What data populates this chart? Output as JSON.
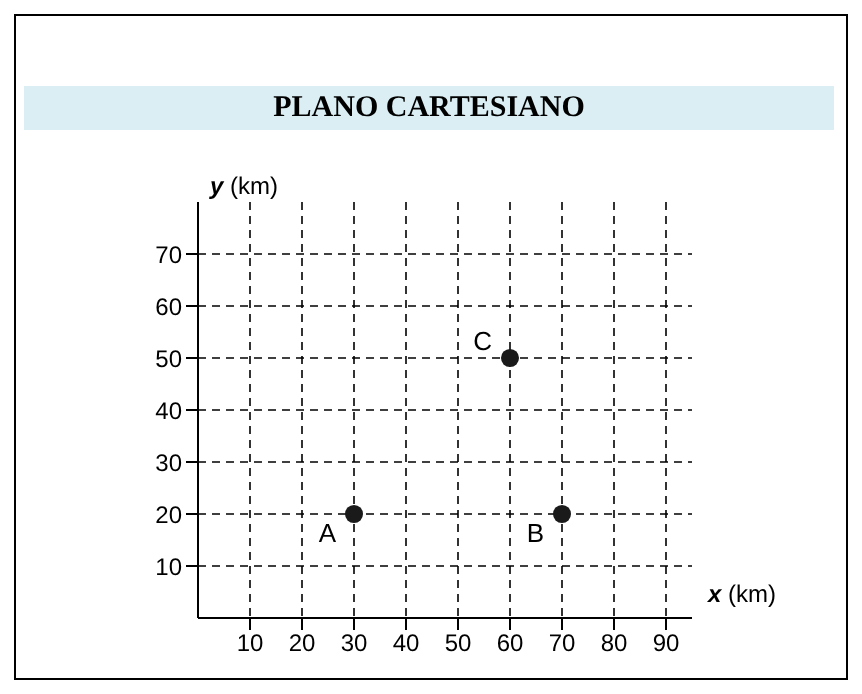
{
  "chart_data": {
    "type": "scatter",
    "title": "PLANO CARTESIANO",
    "xlabel": "x (km)",
    "ylabel": "y (km)",
    "x": [
      30,
      70,
      60
    ],
    "values": [
      20,
      20,
      50
    ],
    "color": "#1a1a1a",
    "xlim": [
      0,
      95
    ],
    "ylim": [
      0,
      80
    ],
    "xticks": [
      10,
      20,
      30,
      40,
      50,
      60,
      70,
      80,
      90
    ],
    "yticks": [
      10,
      20,
      30,
      40,
      50,
      60,
      70
    ],
    "grid": true,
    "marker": "circle",
    "legend": false,
    "annotations": [
      {
        "text": "A",
        "x": 30,
        "y": 20
      },
      {
        "text": "B",
        "x": 70,
        "y": 20
      },
      {
        "text": "C",
        "x": 60,
        "y": 50
      }
    ]
  }
}
